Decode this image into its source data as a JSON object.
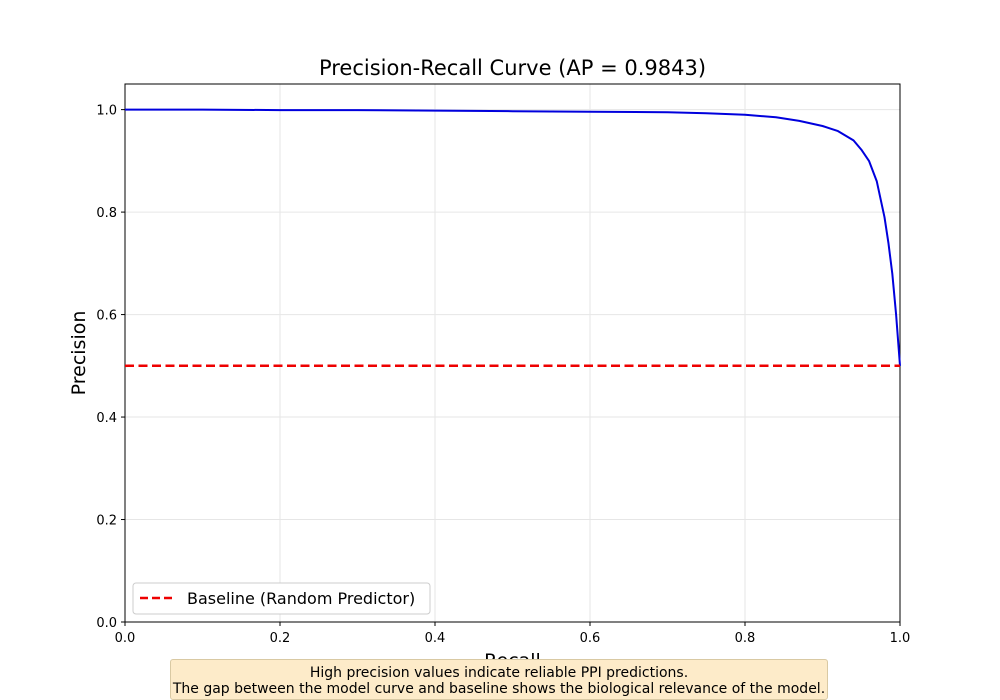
{
  "chart_data": {
    "type": "line",
    "title": "Precision-Recall Curve (AP = 0.9843)",
    "xlabel": "Recall",
    "ylabel": "Precision",
    "xlim": [
      0.0,
      1.0
    ],
    "ylim": [
      0.0,
      1.05
    ],
    "xticks": [
      "0.0",
      "0.2",
      "0.4",
      "0.6",
      "0.8",
      "1.0"
    ],
    "yticks": [
      "0.0",
      "0.2",
      "0.4",
      "0.6",
      "0.8",
      "1.0"
    ],
    "grid": true,
    "legend_position": "lower-left",
    "series": [
      {
        "name": "",
        "color": "#0000dd",
        "style": "solid",
        "x": [
          0.0,
          0.1,
          0.2,
          0.3,
          0.4,
          0.5,
          0.6,
          0.7,
          0.75,
          0.8,
          0.84,
          0.87,
          0.9,
          0.92,
          0.94,
          0.95,
          0.96,
          0.97,
          0.98,
          0.985,
          0.99,
          0.995,
          1.0
        ],
        "y": [
          1.0,
          1.0,
          0.999,
          0.999,
          0.998,
          0.997,
          0.996,
          0.995,
          0.993,
          0.99,
          0.985,
          0.978,
          0.968,
          0.958,
          0.94,
          0.922,
          0.9,
          0.86,
          0.79,
          0.74,
          0.68,
          0.6,
          0.5
        ]
      },
      {
        "name": "Baseline (Random Predictor)",
        "color": "#ee0000",
        "style": "dashed",
        "x": [
          0.0,
          1.0
        ],
        "y": [
          0.5,
          0.5
        ]
      }
    ],
    "annotation": [
      "High precision values indicate reliable PPI predictions.",
      "The gap between the model curve and baseline shows the biological relevance of the model."
    ]
  }
}
